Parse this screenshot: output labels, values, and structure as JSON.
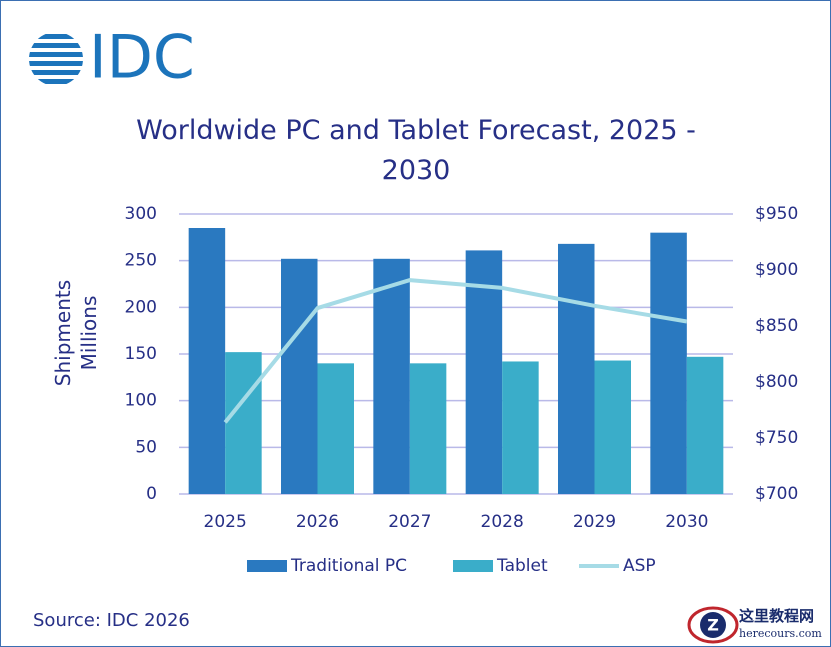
{
  "logo": "IDC",
  "source": "Source: IDC 2026",
  "watermark": {
    "title": "这里教程网",
    "url": "herecours.com"
  },
  "chart_data": {
    "type": "bar",
    "title": "Worldwide PC and Tablet Forecast, 2025 - 2030",
    "y_label": "Shipments Millions",
    "categories": [
      "2025",
      "2026",
      "2027",
      "2028",
      "2029",
      "2030"
    ],
    "series": [
      {
        "name": "Traditional PC",
        "color": "#2a79c0",
        "type": "bar",
        "values": [
          285,
          252,
          252,
          261,
          268,
          280
        ]
      },
      {
        "name": "Tablet",
        "color": "#3aadc9",
        "type": "bar",
        "values": [
          152,
          140,
          140,
          142,
          143,
          147
        ]
      },
      {
        "name": "ASP",
        "color": "#a6dbe6",
        "type": "line",
        "axis": "y2",
        "values": [
          764,
          866,
          891,
          884,
          868,
          854
        ]
      }
    ],
    "ylim": [
      0,
      300
    ],
    "yticks": [
      0,
      50,
      100,
      150,
      200,
      250,
      300
    ],
    "y2lim": [
      700,
      950
    ],
    "y2ticks": [
      {
        "value": 700,
        "label": "$700"
      },
      {
        "value": 750,
        "label": "$750"
      },
      {
        "value": 800,
        "label": "$800"
      },
      {
        "value": 850,
        "label": "$850"
      },
      {
        "value": 900,
        "label": "$900"
      },
      {
        "value": 950,
        "label": "$950"
      }
    ],
    "grid": true,
    "legend": "bottom"
  }
}
